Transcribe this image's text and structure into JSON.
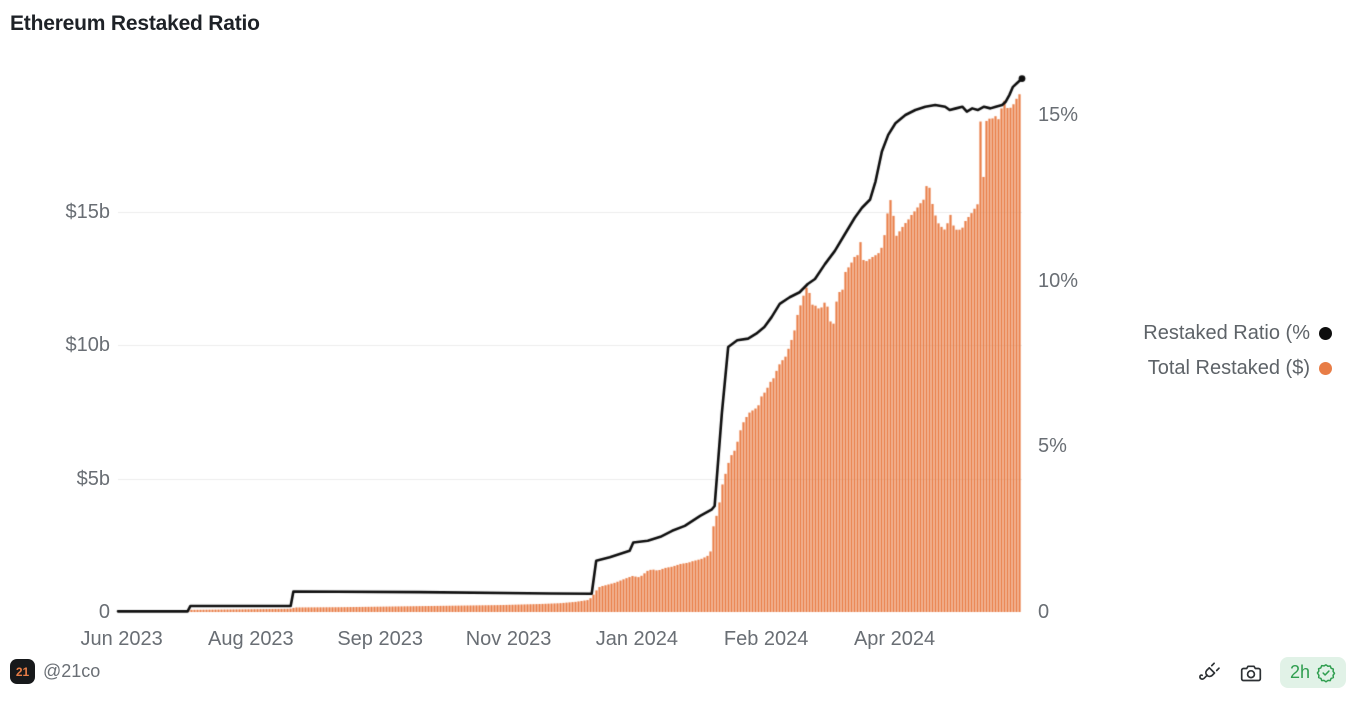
{
  "title": "Ethereum Restaked Ratio",
  "legend": [
    {
      "label": "Restaked Ratio (%",
      "color": "#0e0e0e"
    },
    {
      "label": "Total Restaked ($)",
      "color": "#e87d46"
    }
  ],
  "footer": {
    "logo_text": "21",
    "handle": "@21co",
    "badge_time": "2h",
    "icons": [
      "plug-icon",
      "camera-icon",
      "verified-seal-icon"
    ]
  },
  "colors": {
    "bar": "#e87d46",
    "line": "#0e0e0e",
    "grid": "#ececec",
    "axis_text": "#696e74",
    "badge_bg": "#e1f2e7",
    "badge_text": "#2f9e4f",
    "logo_bg": "#17191b",
    "logo_text": "#e87d46"
  },
  "chart_data": {
    "type": "combo bar+line, x = time (Jun 2023 - Jun 2024), t = fraction of x-range",
    "grid": "horizontal gridlines for left axis only",
    "legend_position": "right",
    "x_ticks": [
      {
        "label": "Jun 2023",
        "t": 0.004
      },
      {
        "label": "Aug 2023",
        "t": 0.147
      },
      {
        "label": "Sep 2023",
        "t": 0.29
      },
      {
        "label": "Nov 2023",
        "t": 0.432
      },
      {
        "label": "Jan 2024",
        "t": 0.574
      },
      {
        "label": "Feb 2024",
        "t": 0.717
      },
      {
        "label": "Apr 2024",
        "t": 0.859
      }
    ],
    "left_axis": {
      "unit": "$ billions",
      "min": 0,
      "max": 20,
      "ticks": [
        {
          "label": "$15b",
          "value": 15
        },
        {
          "label": "$10b",
          "value": 10
        },
        {
          "label": "$5b",
          "value": 5
        },
        {
          "label": "0",
          "value": 0
        }
      ]
    },
    "right_axis": {
      "unit": "%",
      "min": 0,
      "max": 16.2,
      "ticks": [
        {
          "label": "15%",
          "value": 15
        },
        {
          "label": "10%",
          "value": 10
        },
        {
          "label": "5%",
          "value": 5
        },
        {
          "label": "0",
          "value": 0
        }
      ]
    },
    "series": [
      {
        "name": "Total Restaked ($)",
        "type": "bar",
        "axis": "left",
        "color": "#e87d46",
        "points": [
          [
            0,
            0
          ],
          [
            0.077,
            0
          ],
          [
            0.08,
            0.08
          ],
          [
            0.135,
            0.1
          ],
          [
            0.19,
            0.12
          ],
          [
            0.196,
            0.17
          ],
          [
            0.246,
            0.18
          ],
          [
            0.29,
            0.2
          ],
          [
            0.334,
            0.22
          ],
          [
            0.378,
            0.24
          ],
          [
            0.423,
            0.26
          ],
          [
            0.467,
            0.3
          ],
          [
            0.489,
            0.33
          ],
          [
            0.506,
            0.38
          ],
          [
            0.52,
            0.45
          ],
          [
            0.524,
            0.55
          ],
          [
            0.529,
            0.8
          ],
          [
            0.533,
            0.95
          ],
          [
            0.539,
            1.0
          ],
          [
            0.55,
            1.1
          ],
          [
            0.561,
            1.25
          ],
          [
            0.569,
            1.35
          ],
          [
            0.577,
            1.3
          ],
          [
            0.586,
            1.55
          ],
          [
            0.591,
            1.6
          ],
          [
            0.597,
            1.55
          ],
          [
            0.605,
            1.65
          ],
          [
            0.613,
            1.7
          ],
          [
            0.622,
            1.8
          ],
          [
            0.631,
            1.85
          ],
          [
            0.635,
            1.9
          ],
          [
            0.641,
            1.95
          ],
          [
            0.646,
            2.0
          ],
          [
            0.652,
            2.1
          ],
          [
            0.656,
            2.3
          ],
          [
            0.659,
            3.3
          ],
          [
            0.664,
            3.8
          ],
          [
            0.668,
            4.7
          ],
          [
            0.673,
            5.3
          ],
          [
            0.677,
            5.8
          ],
          [
            0.683,
            6.1
          ],
          [
            0.687,
            6.6
          ],
          [
            0.69,
            7.0
          ],
          [
            0.695,
            7.3
          ],
          [
            0.699,
            7.5
          ],
          [
            0.704,
            7.6
          ],
          [
            0.708,
            7.7
          ],
          [
            0.712,
            8.1
          ],
          [
            0.717,
            8.3
          ],
          [
            0.721,
            8.6
          ],
          [
            0.726,
            8.8
          ],
          [
            0.73,
            9.2
          ],
          [
            0.734,
            9.4
          ],
          [
            0.739,
            9.6
          ],
          [
            0.743,
            10.0
          ],
          [
            0.748,
            10.5
          ],
          [
            0.752,
            11.2
          ],
          [
            0.757,
            11.7
          ],
          [
            0.761,
            12.2
          ],
          [
            0.766,
            11.9
          ],
          [
            0.769,
            11.4
          ],
          [
            0.772,
            11.5
          ],
          [
            0.777,
            11.3
          ],
          [
            0.78,
            11.6
          ],
          [
            0.784,
            11.6
          ],
          [
            0.788,
            10.9
          ],
          [
            0.792,
            10.8
          ],
          [
            0.796,
            12.0
          ],
          [
            0.801,
            12.0
          ],
          [
            0.805,
            12.8
          ],
          [
            0.81,
            13.0
          ],
          [
            0.814,
            13.3
          ],
          [
            0.819,
            13.4
          ],
          [
            0.822,
            14.0
          ],
          [
            0.825,
            13.1
          ],
          [
            0.83,
            13.2
          ],
          [
            0.834,
            13.3
          ],
          [
            0.839,
            13.4
          ],
          [
            0.843,
            13.5
          ],
          [
            0.846,
            13.8
          ],
          [
            0.85,
            14.5
          ],
          [
            0.853,
            15.6
          ],
          [
            0.856,
            15.3
          ],
          [
            0.861,
            14.1
          ],
          [
            0.865,
            14.3
          ],
          [
            0.869,
            14.5
          ],
          [
            0.874,
            14.7
          ],
          [
            0.878,
            14.9
          ],
          [
            0.883,
            15.1
          ],
          [
            0.887,
            15.3
          ],
          [
            0.892,
            15.5
          ],
          [
            0.896,
            16.3
          ],
          [
            0.899,
            15.6
          ],
          [
            0.903,
            15.0
          ],
          [
            0.907,
            14.6
          ],
          [
            0.912,
            14.4
          ],
          [
            0.916,
            14.3
          ],
          [
            0.92,
            15.0
          ],
          [
            0.925,
            14.4
          ],
          [
            0.929,
            14.3
          ],
          [
            0.934,
            14.4
          ],
          [
            0.938,
            14.7
          ],
          [
            0.943,
            14.9
          ],
          [
            0.947,
            15.1
          ],
          [
            0.951,
            15.3
          ],
          [
            0.955,
            19.3
          ],
          [
            0.957,
            15.8
          ],
          [
            0.959,
            18.3
          ],
          [
            0.962,
            18.5
          ],
          [
            0.967,
            18.5
          ],
          [
            0.971,
            18.6
          ],
          [
            0.976,
            18.4
          ],
          [
            0.979,
            19.5
          ],
          [
            0.982,
            18.9
          ],
          [
            0.987,
            18.9
          ],
          [
            0.99,
            19.0
          ],
          [
            0.993,
            19.2
          ],
          [
            0.997,
            19.4
          ],
          [
            1,
            19.6
          ]
        ]
      },
      {
        "name": "Restaked Ratio (%)",
        "type": "line",
        "axis": "right",
        "color": "#0e0e0e",
        "points": [
          [
            0,
            0.02
          ],
          [
            0.077,
            0.02
          ],
          [
            0.08,
            0.18
          ],
          [
            0.191,
            0.18
          ],
          [
            0.194,
            0.62
          ],
          [
            0.334,
            0.6
          ],
          [
            0.478,
            0.56
          ],
          [
            0.524,
            0.55
          ],
          [
            0.529,
            1.55
          ],
          [
            0.544,
            1.65
          ],
          [
            0.566,
            1.85
          ],
          [
            0.57,
            2.1
          ],
          [
            0.586,
            2.15
          ],
          [
            0.6,
            2.27
          ],
          [
            0.613,
            2.45
          ],
          [
            0.627,
            2.6
          ],
          [
            0.644,
            2.9
          ],
          [
            0.657,
            3.1
          ],
          [
            0.66,
            3.2
          ],
          [
            0.668,
            6.0
          ],
          [
            0.675,
            8.0
          ],
          [
            0.685,
            8.2
          ],
          [
            0.697,
            8.25
          ],
          [
            0.706,
            8.4
          ],
          [
            0.715,
            8.6
          ],
          [
            0.723,
            8.9
          ],
          [
            0.732,
            9.3
          ],
          [
            0.743,
            9.5
          ],
          [
            0.754,
            9.65
          ],
          [
            0.763,
            9.9
          ],
          [
            0.771,
            10.05
          ],
          [
            0.782,
            10.5
          ],
          [
            0.793,
            10.9
          ],
          [
            0.804,
            11.4
          ],
          [
            0.815,
            11.9
          ],
          [
            0.823,
            12.2
          ],
          [
            0.832,
            12.45
          ],
          [
            0.838,
            13.0
          ],
          [
            0.845,
            13.9
          ],
          [
            0.852,
            14.4
          ],
          [
            0.86,
            14.75
          ],
          [
            0.871,
            15.0
          ],
          [
            0.882,
            15.15
          ],
          [
            0.893,
            15.25
          ],
          [
            0.904,
            15.3
          ],
          [
            0.915,
            15.25
          ],
          [
            0.92,
            15.15
          ],
          [
            0.927,
            15.2
          ],
          [
            0.934,
            15.25
          ],
          [
            0.939,
            15.1
          ],
          [
            0.945,
            15.2
          ],
          [
            0.951,
            15.15
          ],
          [
            0.958,
            15.25
          ],
          [
            0.965,
            15.2
          ],
          [
            0.971,
            15.25
          ],
          [
            0.978,
            15.3
          ],
          [
            0.982,
            15.4
          ],
          [
            0.986,
            15.6
          ],
          [
            0.99,
            15.85
          ],
          [
            0.994,
            15.95
          ],
          [
            1,
            16.1
          ]
        ]
      }
    ]
  }
}
